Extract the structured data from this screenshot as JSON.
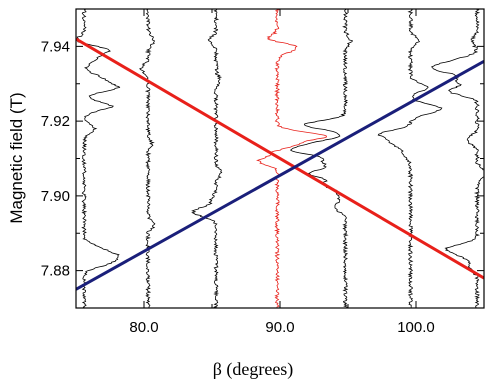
{
  "chart_data": {
    "type": "line",
    "xlabel": "β (degrees)",
    "ylabel": "Magnetic field (T)",
    "xlim": [
      75,
      105
    ],
    "ylim": [
      7.87,
      7.95
    ],
    "x_ticks": [
      {
        "value": 80,
        "label": "80.0"
      },
      {
        "value": 90,
        "label": "90.0"
      },
      {
        "value": 100,
        "label": "100.0"
      }
    ],
    "y_ticks": [
      {
        "value": 7.88,
        "label": "7.88"
      },
      {
        "value": 7.9,
        "label": "7.90"
      },
      {
        "value": 7.92,
        "label": "7.92"
      },
      {
        "value": 7.94,
        "label": "7.94"
      }
    ],
    "grid": false,
    "fit_lines": [
      {
        "color": "#e8201a",
        "points": [
          [
            75,
            7.942
          ],
          [
            105,
            7.878
          ]
        ]
      },
      {
        "color": "#1a1f7a",
        "points": [
          [
            75,
            7.875
          ],
          [
            105,
            7.936
          ]
        ]
      }
    ],
    "traces": [
      {
        "color": "#000000",
        "x": 75.6,
        "features": [
          [
            7.9415,
            -0.6
          ],
          [
            7.939,
            1.8
          ],
          [
            7.9365,
            0.8
          ],
          [
            7.9315,
            1.2
          ],
          [
            7.929,
            2.4
          ],
          [
            7.924,
            2.0
          ],
          [
            7.918,
            0.8
          ],
          [
            7.886,
            1.0
          ],
          [
            7.884,
            2.0
          ],
          [
            7.882,
            1.6
          ]
        ]
      },
      {
        "color": "#000000",
        "x": 80.3,
        "features": [
          [
            7.9415,
            0.4
          ],
          [
            7.934,
            -0.5
          ],
          [
            7.914,
            0.3
          ],
          [
            7.892,
            0.8
          ],
          [
            7.8915,
            -0.4
          ]
        ]
      },
      {
        "color": "#000000",
        "x": 85.3,
        "features": [
          [
            7.9415,
            -0.5
          ],
          [
            7.931,
            0.3
          ],
          [
            7.906,
            0.4
          ],
          [
            7.899,
            -0.3
          ],
          [
            7.896,
            -1.2
          ],
          [
            7.895,
            -0.6
          ]
        ]
      },
      {
        "color": "#e8201a",
        "x": 89.8,
        "features": [
          [
            7.9415,
            -1.3
          ],
          [
            7.9405,
            1.5
          ],
          [
            7.939,
            0.8
          ],
          [
            7.916,
            3.5
          ],
          [
            7.913,
            2.0
          ],
          [
            7.912,
            -2.0
          ],
          [
            7.911,
            1.0
          ],
          [
            7.9095,
            -1.6
          ]
        ]
      },
      {
        "color": "#000000",
        "x": 94.8,
        "features": [
          [
            7.9415,
            0.4
          ],
          [
            7.919,
            -3.0
          ],
          [
            7.914,
            -2.0
          ],
          [
            7.912,
            -3.5
          ],
          [
            7.909,
            -1.5
          ],
          [
            7.906,
            -2.5
          ],
          [
            7.903,
            -1.5
          ],
          [
            7.9,
            -0.5
          ],
          [
            7.897,
            -0.8
          ]
        ]
      },
      {
        "color": "#000000",
        "x": 99.6,
        "features": [
          [
            7.9415,
            0.6
          ],
          [
            7.929,
            1.2
          ],
          [
            7.9235,
            2.0
          ],
          [
            7.922,
            0.5
          ],
          [
            7.9165,
            -2.2
          ],
          [
            7.914,
            -1.2
          ],
          [
            7.911,
            -0.5
          ]
        ]
      },
      {
        "color": "#000000",
        "x": 104.5,
        "features": [
          [
            7.9415,
            -0.4
          ],
          [
            7.936,
            -1.6
          ],
          [
            7.934,
            -3.0
          ],
          [
            7.931,
            -1.4
          ],
          [
            7.928,
            -2.0
          ],
          [
            7.915,
            -0.8
          ],
          [
            7.906,
            0.8
          ],
          [
            7.886,
            -2.0
          ],
          [
            7.884,
            -1.0
          ],
          [
            7.881,
            -0.6
          ]
        ]
      }
    ]
  }
}
